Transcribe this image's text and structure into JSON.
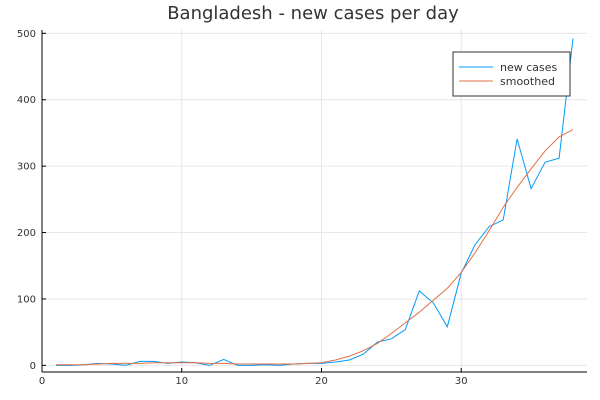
{
  "chart_data": {
    "type": "line",
    "title": "Bangladesh - new cases per day",
    "xlabel": "",
    "ylabel": "",
    "xlim": [
      0,
      39
    ],
    "ylim": [
      -10,
      505
    ],
    "xticks": [
      0,
      10,
      20,
      30
    ],
    "yticks": [
      0,
      100,
      200,
      300,
      400,
      500
    ],
    "grid": true,
    "legend_position": "top-right",
    "x": [
      1,
      2,
      3,
      4,
      5,
      6,
      7,
      8,
      9,
      10,
      11,
      12,
      13,
      14,
      15,
      16,
      17,
      18,
      19,
      20,
      21,
      22,
      23,
      24,
      25,
      26,
      27,
      28,
      29,
      30,
      31,
      32,
      33,
      34,
      35,
      36,
      37,
      38
    ],
    "series": [
      {
        "name": "new cases",
        "color": "#009AF9",
        "values": [
          0,
          0,
          1,
          3,
          2,
          0,
          6,
          6,
          3,
          5,
          4,
          0,
          9,
          0,
          0,
          1,
          0,
          2,
          3,
          3,
          5,
          8,
          17,
          35,
          40,
          54,
          112,
          94,
          58,
          139,
          182,
          209,
          219,
          341,
          266,
          306,
          312,
          492
        ]
      },
      {
        "name": "smoothed",
        "color": "#E26F46",
        "values": [
          1,
          1,
          1,
          2,
          3,
          3,
          3,
          4,
          4,
          4,
          4,
          3,
          3,
          2,
          2,
          2,
          2,
          2,
          3,
          4,
          8,
          14,
          22,
          33,
          48,
          64,
          80,
          98,
          116,
          140,
          170,
          203,
          238,
          268,
          296,
          323,
          344,
          355
        ]
      }
    ]
  }
}
